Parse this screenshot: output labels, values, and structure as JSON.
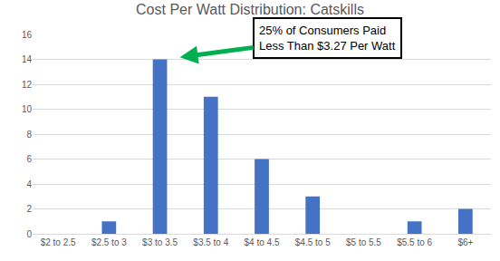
{
  "chart_data": {
    "type": "bar",
    "title": "Cost Per Watt Distribution: Catskills",
    "categories": [
      "$2 to 2.5",
      "$2.5 to 3",
      "$3 to 3.5",
      "$3.5 to 4",
      "$4 to 4.5",
      "$4.5 to 5",
      "$5 to 5.5",
      "$5.5 to 6",
      "$6+"
    ],
    "values": [
      0,
      1,
      14,
      11,
      6,
      3,
      0,
      1,
      2
    ],
    "color": "#4472c4",
    "ylim": [
      0,
      16
    ],
    "yticks": [
      0,
      2,
      4,
      6,
      8,
      10,
      12,
      14,
      16
    ],
    "grid": true,
    "annotations": [
      {
        "text": "25% of Consumers Paid\nLess Than $3.27 Per Watt",
        "category": "$3 to 3.5"
      }
    ]
  }
}
